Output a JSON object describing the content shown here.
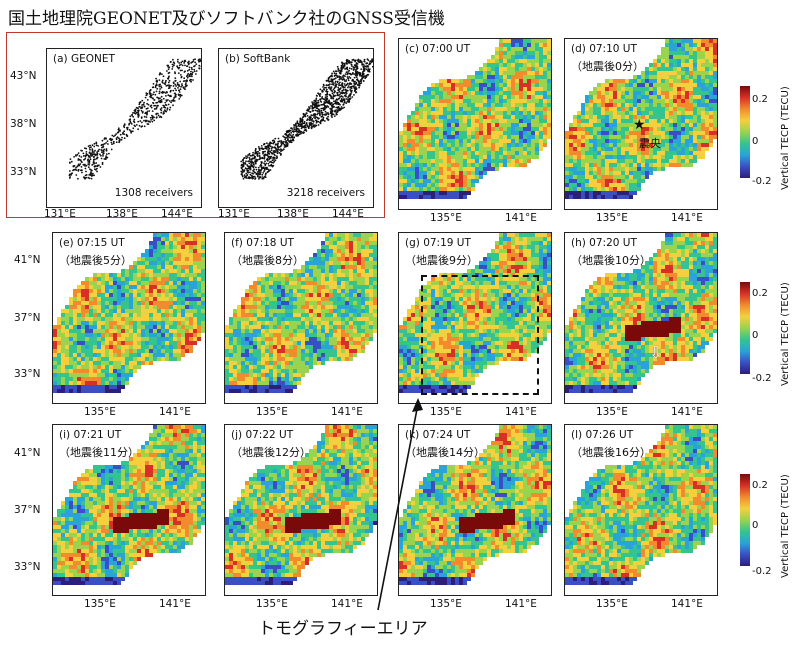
{
  "title": "国土地理院GEONET及びソフトバンク社のGNSS受信機",
  "receivers": [
    {
      "label": "(a) GEONET",
      "count": "1308 receivers"
    },
    {
      "label": "(b) SoftBank",
      "count": "3218 receivers"
    }
  ],
  "receiver_axes": {
    "lat": [
      "43°N",
      "38°N",
      "33°N"
    ],
    "lon": [
      "131°E",
      "138°E",
      "144°E"
    ]
  },
  "panels": [
    {
      "label": "(c) 07:00 UT",
      "sub": ""
    },
    {
      "label": "(d) 07:10 UT",
      "sub": "（地震後0分）"
    },
    {
      "label": "(e) 07:15 UT",
      "sub": "（地震後5分）"
    },
    {
      "label": "(f) 07:18 UT",
      "sub": "（地震後8分）"
    },
    {
      "label": "(g) 07:19 UT",
      "sub": "（地震後9分）"
    },
    {
      "label": "(h) 07:20 UT",
      "sub": "（地震後10分）"
    },
    {
      "label": "(i) 07:21 UT",
      "sub": "（地震後11分）"
    },
    {
      "label": "(j) 07:22 UT",
      "sub": "（地震後12分）"
    },
    {
      "label": "(k) 07:24 UT",
      "sub": "（地震後14分）"
    },
    {
      "label": "(l) 07:26 UT",
      "sub": "（地震後16分）"
    }
  ],
  "map_axes": {
    "lat": [
      "41°N",
      "37°N",
      "33°N"
    ],
    "lon": [
      "135°E",
      "141°E"
    ]
  },
  "epicenter_label": "震央",
  "tomography_label": "トモグラフィーエリア",
  "colorbar": {
    "title": "Vertical TECP (TECU)",
    "ticks": [
      "0.2",
      "0",
      "-0.2"
    ],
    "colors": [
      "#7a0a0a",
      "#d73027",
      "#f28a2e",
      "#f4d03f",
      "#9ad34e",
      "#35c48e",
      "#2aa3d8",
      "#3b4fc4",
      "#2b1f7a"
    ]
  },
  "chart_data": {
    "type": "heatmap",
    "title": "国土地理院GEONET及びソフトバンク社のGNSS受信機",
    "quantity": "Vertical TECP (TECU)",
    "color_range": [
      -0.2,
      0.2
    ],
    "receiver_counts": {
      "GEONET": 1308,
      "SoftBank": 3218
    },
    "times_ut": [
      "07:00",
      "07:10",
      "07:15",
      "07:18",
      "07:19",
      "07:20",
      "07:21",
      "07:22",
      "07:24",
      "07:26"
    ],
    "minutes_after_earthquake": [
      null,
      0,
      5,
      8,
      9,
      10,
      11,
      12,
      14,
      16
    ],
    "lat_ticks": [
      33,
      37,
      41
    ],
    "lon_ticks": [
      135,
      141
    ]
  }
}
